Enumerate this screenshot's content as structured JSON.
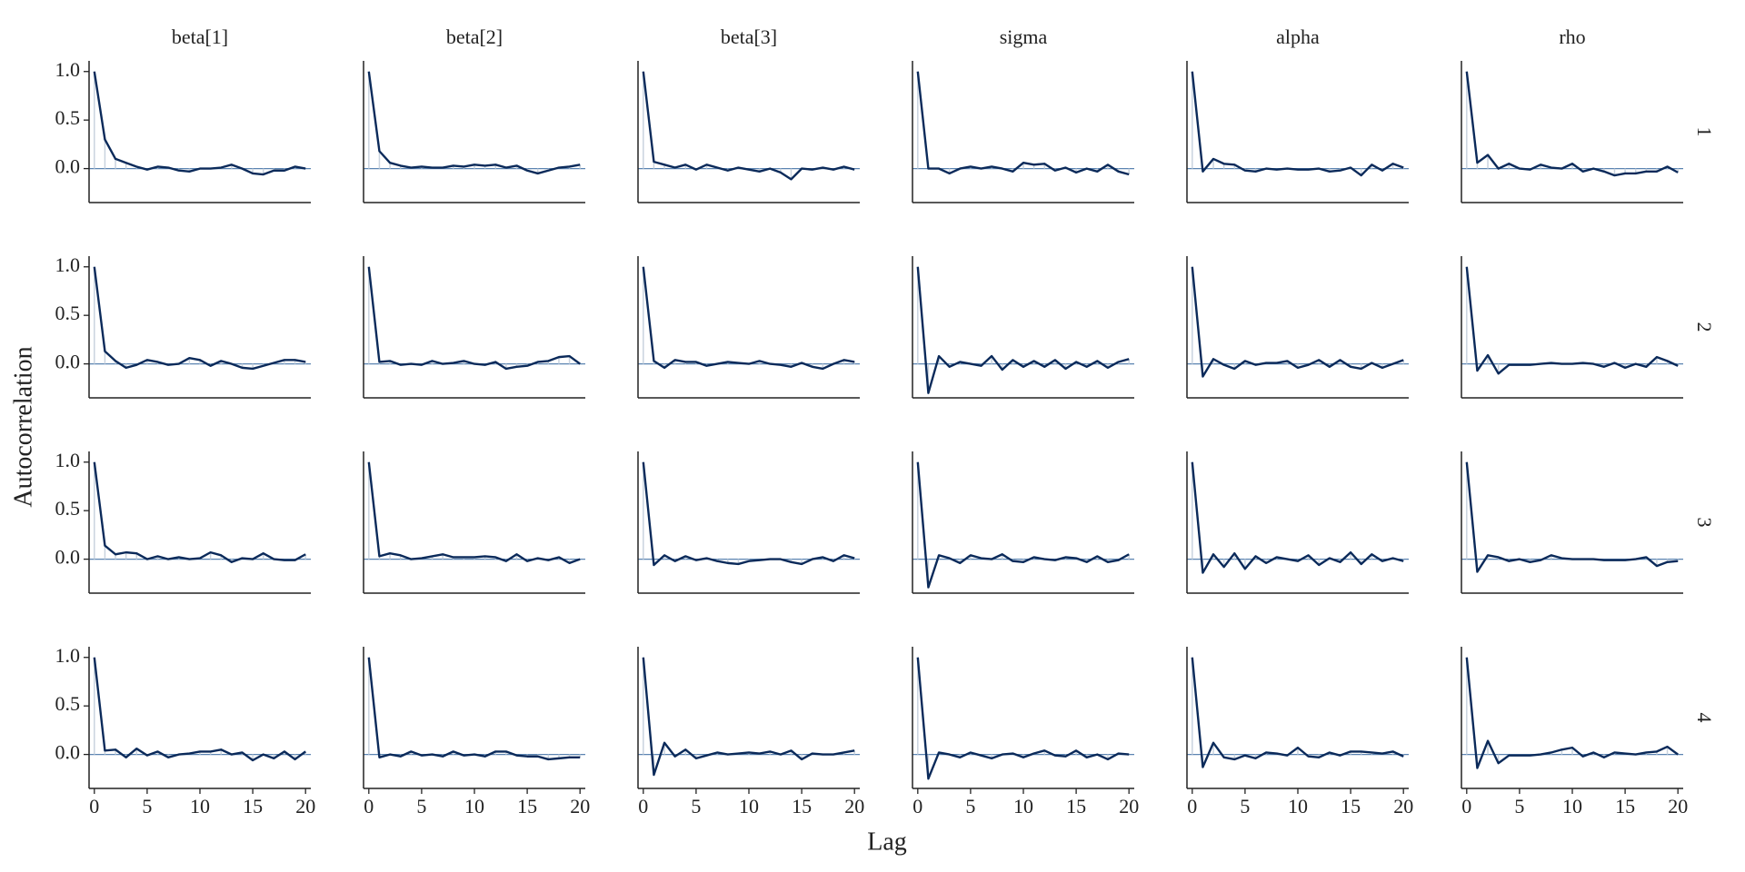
{
  "chart_data": {
    "type": "line",
    "x_label": "Lag",
    "y_label": "Autocorrelation",
    "columns": [
      "beta[1]",
      "beta[2]",
      "beta[3]",
      "sigma",
      "alpha",
      "rho"
    ],
    "rows": [
      "1",
      "2",
      "3",
      "4"
    ],
    "x": [
      0,
      1,
      2,
      3,
      4,
      5,
      6,
      7,
      8,
      9,
      10,
      11,
      12,
      13,
      14,
      15,
      16,
      17,
      18,
      19,
      20
    ],
    "xlim": [
      -0.5,
      20.5
    ],
    "xticks": [
      0,
      5,
      10,
      15,
      20
    ],
    "ylim": [
      -0.35,
      1.11
    ],
    "yticks": [
      {
        "value": 0,
        "label": "0.0"
      },
      {
        "value": 0.5,
        "label": "0.5"
      },
      {
        "value": 1,
        "label": "1.0"
      }
    ],
    "color": "#0b2a5a",
    "panels": [
      [
        [
          1.0,
          0.3,
          0.1,
          0.06,
          0.02,
          -0.01,
          0.02,
          0.01,
          -0.02,
          -0.03,
          0.0,
          0.0,
          0.01,
          0.04,
          0.0,
          -0.05,
          -0.06,
          -0.02,
          -0.02,
          0.02,
          0.0
        ],
        [
          1.0,
          0.18,
          0.06,
          0.03,
          0.01,
          0.02,
          0.01,
          0.01,
          0.03,
          0.02,
          0.04,
          0.03,
          0.04,
          0.01,
          0.03,
          -0.02,
          -0.05,
          -0.02,
          0.01,
          0.02,
          0.04
        ],
        [
          1.0,
          0.07,
          0.04,
          0.01,
          0.04,
          -0.01,
          0.04,
          0.01,
          -0.02,
          0.01,
          -0.01,
          -0.03,
          0.0,
          -0.04,
          -0.11,
          0.0,
          -0.01,
          0.01,
          -0.01,
          0.02,
          -0.01
        ],
        [
          1.0,
          0.0,
          0.0,
          -0.05,
          0.0,
          0.02,
          0.0,
          0.02,
          0.0,
          -0.03,
          0.06,
          0.04,
          0.05,
          -0.02,
          0.01,
          -0.04,
          0.0,
          -0.03,
          0.04,
          -0.03,
          -0.06
        ],
        [
          1.0,
          -0.03,
          0.1,
          0.05,
          0.04,
          -0.02,
          -0.03,
          0.0,
          -0.01,
          0.0,
          -0.01,
          -0.01,
          0.0,
          -0.03,
          -0.02,
          0.01,
          -0.07,
          0.04,
          -0.02,
          0.05,
          0.01
        ],
        [
          1.0,
          0.06,
          0.14,
          0.0,
          0.05,
          0.0,
          -0.01,
          0.04,
          0.01,
          0.0,
          0.05,
          -0.03,
          0.0,
          -0.03,
          -0.07,
          -0.05,
          -0.05,
          -0.03,
          -0.03,
          0.02,
          -0.04
        ]
      ],
      [
        [
          1.0,
          0.13,
          0.03,
          -0.04,
          -0.01,
          0.04,
          0.02,
          -0.01,
          0.0,
          0.06,
          0.04,
          -0.02,
          0.03,
          0.0,
          -0.04,
          -0.05,
          -0.02,
          0.01,
          0.04,
          0.04,
          0.02
        ],
        [
          1.0,
          0.02,
          0.03,
          -0.01,
          0.0,
          -0.01,
          0.03,
          0.0,
          0.01,
          0.03,
          0.0,
          -0.01,
          0.02,
          -0.05,
          -0.03,
          -0.02,
          0.02,
          0.03,
          0.07,
          0.08,
          0.0
        ],
        [
          1.0,
          0.03,
          -0.04,
          0.04,
          0.02,
          0.02,
          -0.02,
          0.0,
          0.02,
          0.01,
          0.0,
          0.03,
          0.0,
          -0.01,
          -0.03,
          0.01,
          -0.03,
          -0.05,
          0.0,
          0.04,
          0.02
        ],
        [
          1.0,
          -0.3,
          0.08,
          -0.03,
          0.02,
          0.0,
          -0.02,
          0.08,
          -0.06,
          0.04,
          -0.03,
          0.03,
          -0.03,
          0.04,
          -0.05,
          0.02,
          -0.03,
          0.03,
          -0.04,
          0.02,
          0.05
        ],
        [
          1.0,
          -0.13,
          0.05,
          -0.01,
          -0.05,
          0.03,
          -0.01,
          0.01,
          0.01,
          0.03,
          -0.04,
          -0.01,
          0.04,
          -0.03,
          0.04,
          -0.03,
          -0.05,
          0.01,
          -0.04,
          0.0,
          0.04
        ],
        [
          1.0,
          -0.07,
          0.09,
          -0.1,
          -0.01,
          -0.01,
          -0.01,
          0.0,
          0.01,
          0.0,
          0.0,
          0.01,
          0.0,
          -0.03,
          0.01,
          -0.04,
          0.0,
          -0.03,
          0.07,
          0.03,
          -0.02
        ]
      ],
      [
        [
          1.0,
          0.14,
          0.05,
          0.07,
          0.06,
          0.0,
          0.03,
          0.0,
          0.02,
          0.0,
          0.01,
          0.07,
          0.04,
          -0.03,
          0.01,
          0.0,
          0.06,
          0.0,
          -0.01,
          -0.01,
          0.05
        ],
        [
          1.0,
          0.03,
          0.06,
          0.04,
          0.0,
          0.01,
          0.03,
          0.05,
          0.02,
          0.02,
          0.02,
          0.03,
          0.02,
          -0.02,
          0.05,
          -0.02,
          0.01,
          -0.01,
          0.02,
          -0.04,
          0.0
        ],
        [
          1.0,
          -0.06,
          0.04,
          -0.02,
          0.03,
          -0.01,
          0.01,
          -0.02,
          -0.04,
          -0.05,
          -0.02,
          -0.01,
          0.0,
          0.0,
          -0.03,
          -0.05,
          0.0,
          0.02,
          -0.02,
          0.04,
          0.01
        ],
        [
          1.0,
          -0.29,
          0.04,
          0.01,
          -0.04,
          0.04,
          0.01,
          0.0,
          0.05,
          -0.02,
          -0.03,
          0.02,
          0.0,
          -0.01,
          0.02,
          0.01,
          -0.03,
          0.03,
          -0.03,
          -0.01,
          0.05
        ],
        [
          1.0,
          -0.14,
          0.05,
          -0.08,
          0.06,
          -0.1,
          0.03,
          -0.04,
          0.02,
          0.0,
          -0.02,
          0.04,
          -0.06,
          0.01,
          -0.03,
          0.07,
          -0.05,
          0.05,
          -0.02,
          0.01,
          -0.02
        ],
        [
          1.0,
          -0.13,
          0.04,
          0.02,
          -0.02,
          0.0,
          -0.03,
          -0.01,
          0.04,
          0.01,
          0.0,
          0.0,
          0.0,
          -0.01,
          -0.01,
          -0.01,
          0.0,
          0.02,
          -0.07,
          -0.03,
          -0.02
        ]
      ],
      [
        [
          1.0,
          0.04,
          0.05,
          -0.03,
          0.06,
          -0.01,
          0.03,
          -0.03,
          0.0,
          0.01,
          0.03,
          0.03,
          0.05,
          0.0,
          0.02,
          -0.06,
          0.0,
          -0.04,
          0.03,
          -0.05,
          0.03
        ],
        [
          1.0,
          -0.03,
          0.0,
          -0.02,
          0.03,
          -0.01,
          0.0,
          -0.02,
          0.03,
          -0.01,
          0.0,
          -0.02,
          0.03,
          0.03,
          -0.01,
          -0.02,
          -0.02,
          -0.05,
          -0.04,
          -0.03,
          -0.03
        ],
        [
          1.0,
          -0.21,
          0.12,
          -0.02,
          0.05,
          -0.04,
          -0.01,
          0.02,
          0.0,
          0.01,
          0.02,
          0.01,
          0.03,
          0.0,
          0.04,
          -0.05,
          0.01,
          0.0,
          0.0,
          0.02,
          0.04
        ],
        [
          1.0,
          -0.25,
          0.02,
          0.0,
          -0.03,
          0.02,
          -0.01,
          -0.04,
          0.0,
          0.01,
          -0.03,
          0.01,
          0.04,
          -0.01,
          -0.02,
          0.04,
          -0.03,
          0.0,
          -0.05,
          0.01,
          0.0
        ],
        [
          1.0,
          -0.13,
          0.12,
          -0.03,
          -0.05,
          -0.01,
          -0.04,
          0.02,
          0.01,
          -0.01,
          0.07,
          -0.02,
          -0.03,
          0.02,
          -0.01,
          0.03,
          0.03,
          0.02,
          0.01,
          0.03,
          -0.02
        ],
        [
          1.0,
          -0.14,
          0.14,
          -0.09,
          -0.01,
          -0.01,
          -0.01,
          0.0,
          0.02,
          0.05,
          0.07,
          -0.02,
          0.02,
          -0.03,
          0.02,
          0.01,
          0.0,
          0.02,
          0.03,
          0.08,
          0.0
        ]
      ]
    ]
  }
}
